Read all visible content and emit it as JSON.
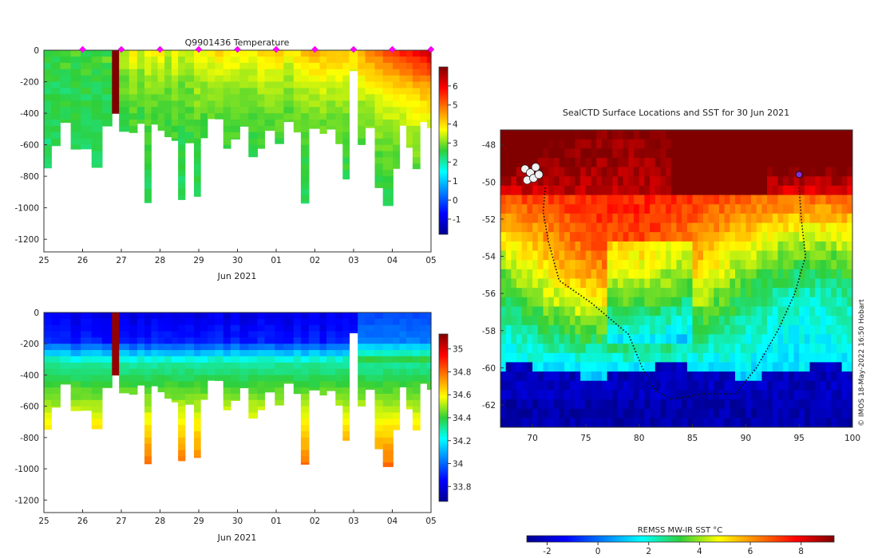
{
  "chart_data": [
    {
      "type": "heatmap",
      "title": "Q9901436  Temperature",
      "xlabel": "Jun 2021",
      "x_ticks": [
        "25",
        "26",
        "27",
        "28",
        "29",
        "30",
        "01",
        "02",
        "03",
        "04",
        "05"
      ],
      "xlim": [
        0,
        10
      ],
      "ylim": [
        -1280,
        0
      ],
      "y_ticks": [
        0,
        -200,
        -400,
        -600,
        -800,
        -1000,
        -1200
      ],
      "colorbar": {
        "range": [
          -1.8,
          7.0
        ],
        "ticks": [
          -1,
          0,
          1,
          2,
          3,
          4,
          5,
          6
        ]
      },
      "profile_markers_day": [
        1,
        2,
        3,
        4,
        5,
        6,
        7,
        8,
        9,
        10
      ]
    },
    {
      "type": "heatmap",
      "title": "",
      "xlabel": "Jun 2021",
      "x_ticks": [
        "25",
        "26",
        "27",
        "28",
        "29",
        "30",
        "01",
        "02",
        "03",
        "04",
        "05"
      ],
      "xlim": [
        0,
        10
      ],
      "ylim": [
        -1280,
        0
      ],
      "y_ticks": [
        0,
        -200,
        -400,
        -600,
        -800,
        -1000,
        -1200
      ],
      "colorbar": {
        "range": [
          33.67,
          35.13
        ],
        "ticks": [
          33.8,
          34.0,
          34.2,
          34.4,
          34.6,
          34.8,
          35.0
        ],
        "tick_labels": [
          "33.8",
          "34",
          "34.2",
          "34.4",
          "34.6",
          "34.8",
          "35"
        ]
      }
    },
    {
      "type": "map",
      "title": "SealCTD Surface Locations and SST for 30 Jun 2021",
      "x_ticks": [
        70,
        75,
        80,
        85,
        90,
        95,
        100
      ],
      "y_ticks": [
        -48,
        -50,
        -52,
        -54,
        -56,
        -58,
        -60,
        -62
      ],
      "xlim": [
        67,
        100
      ],
      "ylim": [
        -63.2,
        -47.2
      ],
      "track": [
        [
          71.2,
          -50.3
        ],
        [
          71.0,
          -51.6
        ],
        [
          71.5,
          -53.2
        ],
        [
          72.5,
          -55.3
        ],
        [
          75.5,
          -56.5
        ],
        [
          79.0,
          -58.2
        ],
        [
          80.3,
          -60.0
        ],
        [
          81.5,
          -61.2
        ],
        [
          83.0,
          -61.7
        ],
        [
          86.0,
          -61.4
        ],
        [
          89.0,
          -61.4
        ],
        [
          91.0,
          -60.0
        ],
        [
          93.0,
          -58.0
        ],
        [
          94.6,
          -56.0
        ],
        [
          95.6,
          -54.0
        ],
        [
          95.2,
          -52.0
        ],
        [
          95.0,
          -50.3
        ]
      ],
      "latest_position": [
        95.0,
        -49.6
      ],
      "colorbar": {
        "label": "REMSS MW-IR SST °C",
        "range": [
          -2.8,
          9.3
        ],
        "ticks": [
          -2,
          0,
          2,
          4,
          6,
          8
        ]
      },
      "credit": "© IMOS 18-May-2022 16:50 Hobart"
    }
  ]
}
